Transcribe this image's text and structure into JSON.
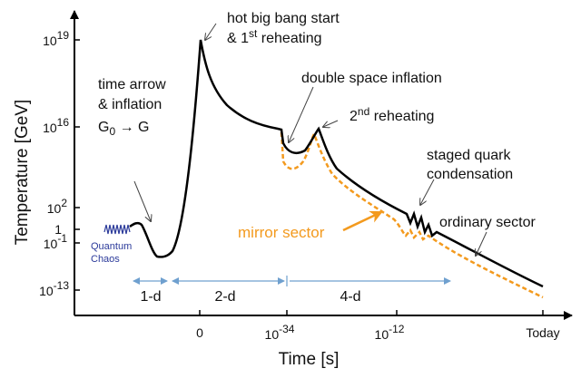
{
  "axes": {
    "ylabel": "Temperature [GeV]",
    "xlabel": "Time [s]",
    "y_ticks": [
      {
        "base": "10",
        "exp": "19"
      },
      {
        "base": "10",
        "exp": "16"
      },
      {
        "base": "10",
        "exp": "2"
      },
      {
        "base": "1",
        "exp": ""
      },
      {
        "base": "10",
        "exp": "-1"
      },
      {
        "base": "10",
        "exp": "-13"
      }
    ],
    "x_ticks": [
      {
        "base": "0",
        "exp": ""
      },
      {
        "base": "10",
        "exp": "-34"
      },
      {
        "base": "10",
        "exp": "-12"
      },
      {
        "base": "Today",
        "exp": ""
      }
    ]
  },
  "annotations": {
    "hot_big_bang_1": "hot big bang start",
    "hot_big_bang_2_pre": "& 1",
    "hot_big_bang_2_sup": "st",
    "hot_big_bang_2_post": " reheating",
    "time_arrow_1": "time arrow",
    "time_arrow_2": "& inflation",
    "time_arrow_3_g": "G",
    "time_arrow_3_sub": "0",
    "time_arrow_3_post": " → G",
    "double_space": "double space inflation",
    "reheat2_pre": "2",
    "reheat2_sup": "nd",
    "reheat2_post": " reheating",
    "staged_1": "staged quark",
    "staged_2": "condensation",
    "ordinary": "ordinary sector",
    "mirror": "mirror sector",
    "quantum_1": "Quantum",
    "quantum_2": "Chaos"
  },
  "stages": [
    "1-d",
    "2-d",
    "4-d"
  ],
  "colors": {
    "ordinary": "#000000",
    "mirror": "#f39a1e",
    "quantum": "#2b3a9a",
    "stage_arrow": "#6fa0cf"
  }
}
